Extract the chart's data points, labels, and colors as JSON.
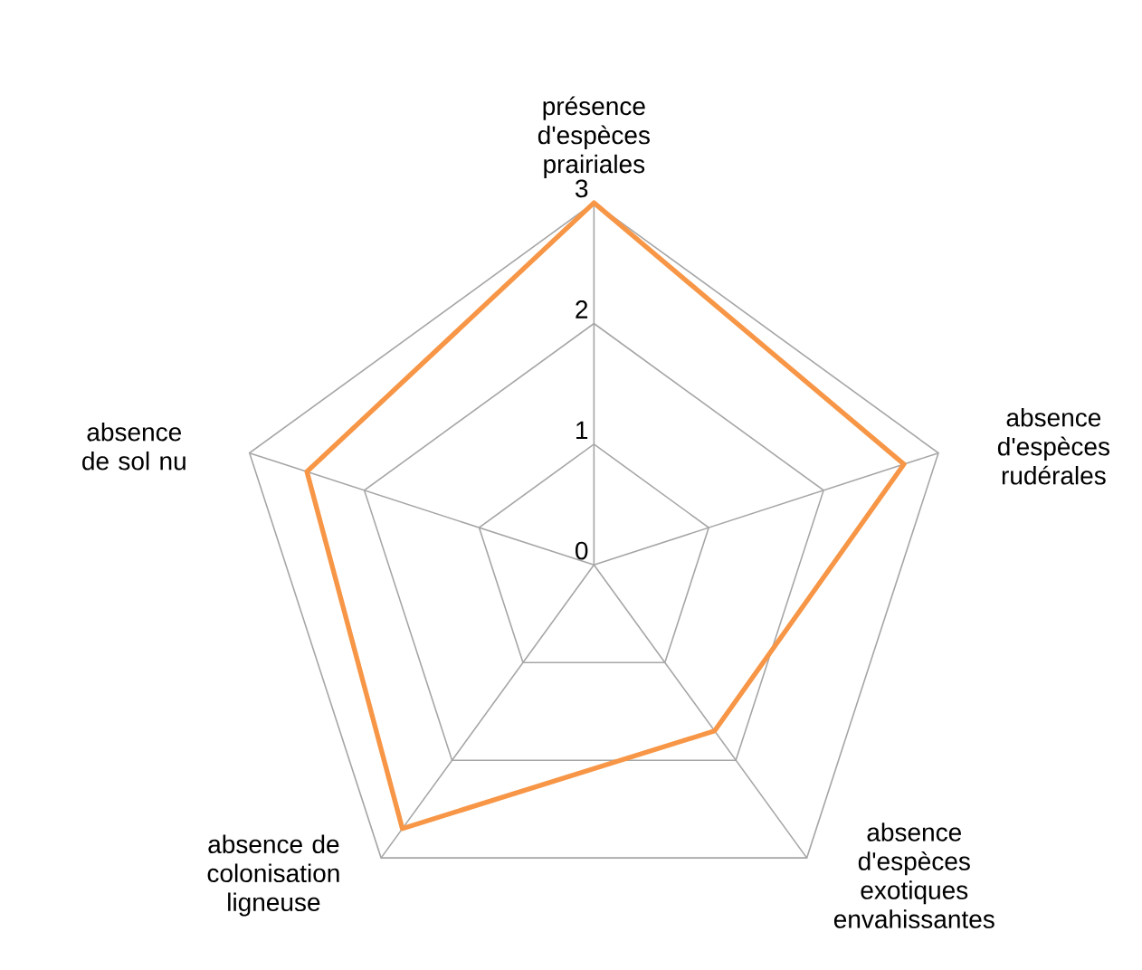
{
  "chart_data": {
    "type": "radar",
    "categories": [
      "présence d'espèces prairiales",
      "absence d'espèces rudérales",
      "absence d'espèces exotiques envahissantes",
      "absence de colonisation ligneuse",
      "absence de sol nu"
    ],
    "series": [
      {
        "color": "#f79646",
        "values": [
          3,
          2.7,
          1.7,
          2.7,
          2.5
        ]
      }
    ],
    "ylim": [
      0,
      3
    ],
    "yticks": [
      0,
      1,
      2,
      3
    ],
    "grid": true
  }
}
